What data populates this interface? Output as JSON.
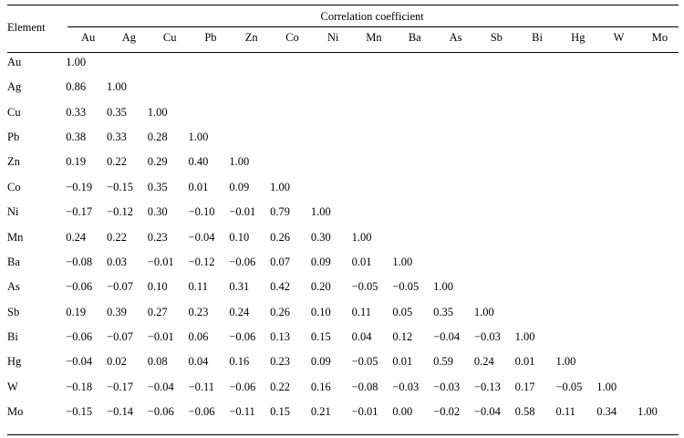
{
  "table": {
    "element_header": "Element",
    "group_header": "Correlation coefficient",
    "columns": [
      "Au",
      "Ag",
      "Cu",
      "Pb",
      "Zn",
      "Co",
      "Ni",
      "Mn",
      "Ba",
      "As",
      "Sb",
      "Bi",
      "Hg",
      "W",
      "Mo"
    ],
    "rows": [
      {
        "label": "Au",
        "values": [
          "1.00"
        ]
      },
      {
        "label": "Ag",
        "values": [
          "0.86",
          "1.00"
        ]
      },
      {
        "label": "Cu",
        "values": [
          "0.33",
          "0.35",
          "1.00"
        ]
      },
      {
        "label": "Pb",
        "values": [
          "0.38",
          "0.33",
          "0.28",
          "1.00"
        ]
      },
      {
        "label": "Zn",
        "values": [
          "0.19",
          "0.22",
          "0.29",
          "0.40",
          "1.00"
        ]
      },
      {
        "label": "Co",
        "values": [
          "−0.19",
          "−0.15",
          "0.35",
          "0.01",
          "0.09",
          "1.00"
        ]
      },
      {
        "label": "Ni",
        "values": [
          "−0.17",
          "−0.12",
          "0.30",
          "−0.10",
          "−0.01",
          "0.79",
          "1.00"
        ]
      },
      {
        "label": "Mn",
        "values": [
          "0.24",
          "0.22",
          "0.23",
          "−0.04",
          "0.10",
          "0.26",
          "0.30",
          "1.00"
        ]
      },
      {
        "label": "Ba",
        "values": [
          "−0.08",
          "0.03",
          "−0.01",
          "−0.12",
          "−0.06",
          "0.07",
          "0.09",
          "0.01",
          "1.00"
        ]
      },
      {
        "label": "As",
        "values": [
          "−0.06",
          "−0.07",
          "0.10",
          "0.11",
          "0.31",
          "0.42",
          "0.20",
          "−0.05",
          "−0.05",
          "1.00"
        ]
      },
      {
        "label": "Sb",
        "values": [
          "0.19",
          "0.39",
          "0.27",
          "0.23",
          "0.24",
          "0.26",
          "0.10",
          "0.11",
          "0.05",
          "0.35",
          "1.00"
        ]
      },
      {
        "label": "Bi",
        "values": [
          "−0.06",
          "−0.07",
          "−0.01",
          "0.06",
          "−0.06",
          "0.13",
          "0.15",
          "0.04",
          "0.12",
          "−0.04",
          "−0.03",
          "1.00"
        ]
      },
      {
        "label": "Hg",
        "values": [
          "−0.04",
          "0.02",
          "0.08",
          "0.04",
          "0.16",
          "0.23",
          "0.09",
          "−0.05",
          "0.01",
          "0.59",
          "0.24",
          "0.01",
          "1.00"
        ]
      },
      {
        "label": "W",
        "values": [
          "−0.18",
          "−0.17",
          "−0.04",
          "−0.11",
          "−0.06",
          "0.22",
          "0.16",
          "−0.08",
          "−0.03",
          "−0.03",
          "−0.13",
          "0.17",
          "−0.05",
          "1.00"
        ]
      },
      {
        "label": "Mo",
        "values": [
          "−0.15",
          "−0.14",
          "−0.06",
          "−0.06",
          "−0.11",
          "0.15",
          "0.21",
          "−0.01",
          "0.00",
          "−0.02",
          "−0.04",
          "0.58",
          "0.11",
          "0.34",
          "1.00"
        ]
      }
    ]
  }
}
